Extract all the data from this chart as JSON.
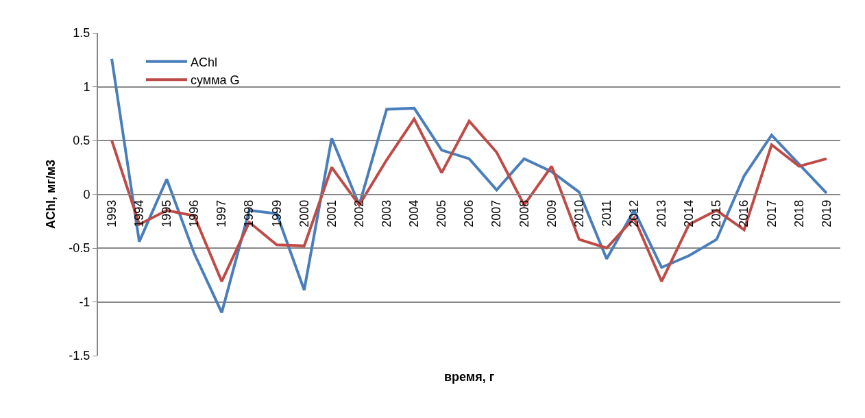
{
  "chart_data": {
    "type": "line",
    "xlabel": "время, г",
    "ylabel": "AChl, мг/м3",
    "categories": [
      "1993",
      "1994",
      "1995",
      "1996",
      "1997",
      "1998",
      "1999",
      "2000",
      "2001",
      "2002",
      "2003",
      "2004",
      "2005",
      "2006",
      "2007",
      "2008",
      "2009",
      "2010",
      "2011",
      "2012",
      "2013",
      "2014",
      "2015",
      "2016",
      "2017",
      "2018",
      "2019"
    ],
    "series": [
      {
        "name": "AChl",
        "color": "#4a7ebb",
        "values": [
          1.26,
          -0.44,
          0.14,
          -0.55,
          -1.1,
          -0.15,
          -0.18,
          -0.89,
          0.52,
          -0.1,
          0.79,
          0.8,
          0.41,
          0.33,
          0.04,
          0.33,
          0.21,
          0.02,
          -0.6,
          -0.15,
          -0.68,
          -0.57,
          -0.42,
          0.17,
          0.55,
          0.28,
          0.01
        ]
      },
      {
        "name": "сумма G",
        "color": "#be4b48",
        "values": [
          0.5,
          -0.28,
          -0.15,
          -0.2,
          -0.81,
          -0.26,
          -0.47,
          -0.48,
          0.25,
          -0.1,
          0.32,
          0.7,
          0.2,
          0.68,
          0.39,
          -0.1,
          0.26,
          -0.42,
          -0.5,
          -0.22,
          -0.81,
          -0.28,
          -0.15,
          -0.33,
          0.46,
          0.26,
          0.33
        ]
      }
    ],
    "ylim": [
      -1.5,
      1.5
    ],
    "yticks": [
      -1.5,
      -1,
      -0.5,
      0,
      0.5,
      1,
      1.5
    ],
    "grid": "y",
    "legend": "top left",
    "marker": "none",
    "line_style": "solid"
  }
}
